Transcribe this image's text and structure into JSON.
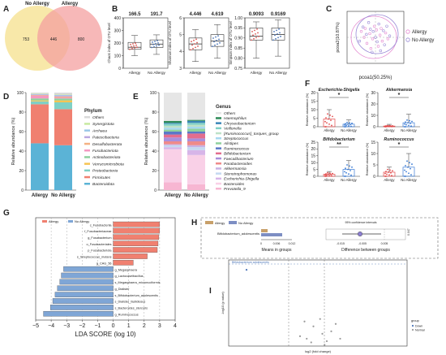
{
  "figure": {
    "panel_letters": [
      "A",
      "B",
      "C",
      "D",
      "E",
      "F",
      "G",
      "H",
      "I"
    ]
  },
  "colors": {
    "allergy": "#c8a06a",
    "no_allergy": "#7d8ec3",
    "venn_allergy": "#f4a0a0",
    "venn_no_allergy": "#f7e6a0",
    "venn_overlap": "#e89070",
    "lefse_allergy": "#f08070",
    "lefse_no_allergy": "#7fa6d6",
    "pcoa_allergy": "#e58bd2",
    "pcoa_no_allergy": "#9a8ad6"
  },
  "chart_data": [
    {
      "panel": "A",
      "type": "venn",
      "sets": [
        {
          "name": "No Allergy",
          "unique": 753
        },
        {
          "name": "Allergy",
          "unique": 800
        }
      ],
      "overlap": 446
    },
    {
      "panel": "B",
      "type": "box",
      "subplots": [
        {
          "ylabel": "Chao1 index of OTU level",
          "categories": [
            "Allergy",
            "No Allergy"
          ],
          "labels": [
            "166.5",
            "191.7"
          ],
          "median": [
            166.5,
            191.7
          ],
          "q1": [
            150,
            165
          ],
          "q3": [
            205,
            225
          ],
          "whisker_low": [
            100,
            110
          ],
          "whisker_high": [
            260,
            265
          ],
          "ylim": [
            0,
            400
          ],
          "yticks": [
            0,
            100,
            200,
            300,
            400
          ]
        },
        {
          "ylabel": "Shannon index of OTU level",
          "categories": [
            "Allergy",
            "No Allergy"
          ],
          "labels": [
            "4.446",
            "4.619"
          ],
          "median": [
            4.446,
            4.619
          ],
          "q1": [
            4.1,
            4.3
          ],
          "q3": [
            4.8,
            5.0
          ],
          "whisker_low": [
            3.4,
            3.6
          ],
          "whisker_high": [
            5.3,
            5.6
          ],
          "ylim": [
            3,
            6
          ],
          "yticks": [
            3,
            4,
            5,
            6
          ]
        },
        {
          "ylabel": "Simpson index of OTU level",
          "categories": [
            "Allergy",
            "No Allergy"
          ],
          "labels": [
            "0.9093",
            "0.9169"
          ],
          "median": [
            0.9093,
            0.9169
          ],
          "q1": [
            0.89,
            0.89
          ],
          "q3": [
            0.95,
            0.95
          ],
          "whisker_low": [
            0.8,
            0.81
          ],
          "whisker_high": [
            0.98,
            0.99
          ],
          "ylim": [
            0.75,
            1.0
          ],
          "yticks": [
            0.75,
            0.8,
            0.85,
            0.9,
            0.95,
            1.0
          ]
        }
      ]
    },
    {
      "panel": "C",
      "type": "scatter",
      "xlabel": "pcoa1(50.25%)",
      "ylabel": "pcoa2(10.87%)",
      "xlim": [
        -0.5,
        0.5
      ],
      "ylim": [
        -0.35,
        0.35
      ],
      "series": [
        {
          "name": "Allergy",
          "points": [
            [
              -0.25,
              0.08
            ],
            [
              -0.18,
              0.12
            ],
            [
              -0.1,
              0.05
            ],
            [
              -0.05,
              -0.02
            ],
            [
              0.02,
              0.1
            ],
            [
              0.08,
              0.03
            ],
            [
              0.12,
              -0.05
            ],
            [
              -0.15,
              -0.08
            ],
            [
              0.05,
              -0.12
            ],
            [
              0.18,
              0.06
            ],
            [
              -0.02,
              0.15
            ],
            [
              0.1,
              0.12
            ],
            [
              -0.08,
              -0.15
            ],
            [
              0.22,
              -0.02
            ],
            [
              -0.2,
              0.0
            ]
          ]
        },
        {
          "name": "No Allergy",
          "points": [
            [
              -0.22,
              0.14
            ],
            [
              -0.12,
              0.2
            ],
            [
              -0.04,
              0.08
            ],
            [
              0.0,
              0.0
            ],
            [
              0.06,
              0.18
            ],
            [
              0.14,
              0.09
            ],
            [
              -0.16,
              0.04
            ],
            [
              0.03,
              -0.06
            ],
            [
              -0.09,
              0.11
            ],
            [
              0.16,
              -0.1
            ],
            [
              0.2,
              0.15
            ],
            [
              -0.06,
              -0.2
            ],
            [
              0.25,
              0.02
            ],
            [
              -0.28,
              -0.05
            ],
            [
              0.09,
              -0.18
            ]
          ]
        }
      ]
    },
    {
      "panel": "D",
      "type": "bar",
      "stacked": true,
      "ylabel": "Relative abundance (%)",
      "ylim": [
        0,
        100
      ],
      "yticks": [
        0,
        20,
        40,
        60,
        80,
        100
      ],
      "categories": [
        "Allergy",
        "No Allergy"
      ],
      "legend_title": "Phylum",
      "series": [
        {
          "name": "Bacteroidota",
          "color": "#5bb3d6",
          "values": [
            48,
            46
          ]
        },
        {
          "name": "Firmicutes",
          "color": "#f08070",
          "values": [
            40,
            37
          ]
        },
        {
          "name": "Proteobacteria",
          "color": "#7fd0c5",
          "values": [
            3,
            7
          ]
        },
        {
          "name": "Verrucomicrobiota",
          "color": "#f6c453",
          "values": [
            1,
            2
          ]
        },
        {
          "name": "Actinobacteriota",
          "color": "#8fd19e",
          "values": [
            2,
            2
          ]
        },
        {
          "name": "Fusobacteriota",
          "color": "#f49ac1",
          "values": [
            3,
            1
          ]
        },
        {
          "name": "Desulfobacterota",
          "color": "#f4b183",
          "values": [
            0.5,
            1
          ]
        },
        {
          "name": "Patescibacteria",
          "color": "#bca8e0",
          "values": [
            0.5,
            1
          ]
        },
        {
          "name": "Archaea",
          "color": "#9ac7e8",
          "values": [
            0.5,
            0.5
          ]
        },
        {
          "name": "Synergistota",
          "color": "#c7e9a0",
          "values": [
            0.5,
            0.5
          ]
        },
        {
          "name": "Others",
          "color": "#d9d9d9",
          "values": [
            1,
            2
          ]
        }
      ]
    },
    {
      "panel": "E",
      "type": "bar",
      "stacked": true,
      "ylabel": "Relative abundance (%)",
      "ylim": [
        0,
        100
      ],
      "yticks": [
        0,
        20,
        40,
        60,
        80,
        100
      ],
      "categories": [
        "Allergy",
        "No Allergy"
      ],
      "legend_title": "Genus",
      "series": [
        {
          "name": "Prevotella_9",
          "color": "#f7b6d2",
          "values": [
            8,
            6
          ]
        },
        {
          "name": "Bacteroides",
          "color": "#f9d0e7",
          "values": [
            34,
            30
          ]
        },
        {
          "name": "Escherichia-Shigella",
          "color": "#d7b5e8",
          "values": [
            2,
            5
          ]
        },
        {
          "name": "Stenotrophomonas",
          "color": "#c5d9f1",
          "values": [
            2,
            3
          ]
        },
        {
          "name": "Akkermansia",
          "color": "#c9b1e3",
          "values": [
            1,
            2
          ]
        },
        {
          "name": "Parabacteroides",
          "color": "#ef8a8a",
          "values": [
            3,
            4
          ]
        },
        {
          "name": "Faecalibacterium",
          "color": "#a98fdc",
          "values": [
            4,
            3
          ]
        },
        {
          "name": "Bifidobacterium",
          "color": "#e36d8e",
          "values": [
            3,
            5
          ]
        },
        {
          "name": "Ruminococcus",
          "color": "#5a78c8",
          "values": [
            3,
            2
          ]
        },
        {
          "name": "Alistipes",
          "color": "#8fd19e",
          "values": [
            2,
            3
          ]
        },
        {
          "name": "Streptococcus",
          "color": "#a7d8f0",
          "values": [
            2,
            2
          ]
        },
        {
          "name": "[Ruminococcus]_torques_group",
          "color": "#bde2c8",
          "values": [
            2,
            2
          ]
        },
        {
          "name": "Veillonella",
          "color": "#7fd0c5",
          "values": [
            2,
            2
          ]
        },
        {
          "name": "Chryseobacterium",
          "color": "#3a86b8",
          "values": [
            1,
            2
          ]
        },
        {
          "name": "Haemophilus",
          "color": "#2e8b57",
          "values": [
            2,
            1
          ]
        },
        {
          "name": "Others",
          "color": "#e6e6e6",
          "values": [
            29,
            28
          ]
        }
      ]
    },
    {
      "panel": "F",
      "type": "bar_scatter",
      "ylabel": "Relative abundance (%)",
      "categories": [
        "Allergy",
        "No Allergy"
      ],
      "subplots": [
        {
          "title": "Escherichia-Shigella",
          "means": [
            4.5,
            1.5
          ],
          "sd": [
            5.5,
            2.5
          ],
          "ylim": [
            0,
            20
          ],
          "yticks": [
            0,
            5,
            10,
            15,
            20
          ],
          "sig": "*"
        },
        {
          "title": "Akkermansia",
          "means": [
            0.6,
            3.5
          ],
          "sd": [
            1.5,
            7.5
          ],
          "ylim": [
            0,
            30
          ],
          "yticks": [
            0,
            10,
            20,
            30
          ],
          "sig": "*"
        },
        {
          "title": "Bifidobacterium",
          "means": [
            1.5,
            5.0
          ],
          "sd": [
            2.0,
            6.5
          ],
          "ylim": [
            0,
            25
          ],
          "yticks": [
            0,
            5,
            10,
            15,
            20,
            25
          ],
          "sig": "**"
        },
        {
          "title": "Ruminococcus",
          "means": [
            1.8,
            4.0
          ],
          "sd": [
            2.2,
            6.0
          ],
          "ylim": [
            0,
            15
          ],
          "yticks": [
            0,
            5,
            10,
            15
          ],
          "sig": "*"
        }
      ]
    },
    {
      "panel": "G",
      "type": "bar",
      "orientation": "horizontal",
      "xlabel": "LDA SCORE (log 10)",
      "xlim": [
        -5,
        4
      ],
      "xticks": [
        -5,
        -4,
        -3,
        -2,
        -1,
        0,
        1,
        2,
        3,
        4
      ],
      "legend": [
        "Allergy",
        "No Allergy"
      ],
      "categories": [
        "c_Fusobacteriia",
        "f_Fusobacteriaceae",
        "g_Fusobacterium",
        "o_Fusobacteriales",
        "p_Fusobacteriota",
        "s_Streptococcus_mutans",
        "g_CAG_56",
        "g_Megasphaera",
        "g_Lactocaseibacillus",
        "s_Megasphaera_micronuciformis",
        "g_Dialister",
        "s_Bifidobacterium_adolescentis",
        "s_Dialister_fastidiosus",
        "s_Bacteroides_stercoris",
        "g_Ruminococcus"
      ],
      "values": [
        3.0,
        3.0,
        2.95,
        2.9,
        2.85,
        2.2,
        1.3,
        -3.2,
        -3.35,
        -3.45,
        -3.6,
        -3.75,
        -3.9,
        -4.05,
        -4.5
      ]
    },
    {
      "panel": "H",
      "type": "extended_error_bar",
      "legend": [
        "Allergy",
        "No Allergy"
      ],
      "ci_label": "95% confidence intervals",
      "categories": [
        "Bifidobacterium_adolescentis"
      ],
      "mean_allergy": [
        0.003
      ],
      "mean_no_allergy": [
        0.009
      ],
      "difference": [
        -0.006
      ],
      "ci": [
        [
          -0.014,
          0.001
        ]
      ],
      "p_value": "0.047",
      "xlabel_left": "Means in groups",
      "xlabel_right": "Difference between groups",
      "left_ticks": [
        "0",
        "0.006",
        "0.012"
      ],
      "right_ticks": [
        "-0.015",
        "-0.005",
        "0.005"
      ]
    },
    {
      "panel": "I",
      "type": "scatter",
      "xlabel": "log2 (fold change)",
      "ylabel": "-log10 (p value)",
      "annotation": "Bifidobacterium adolescentis",
      "legend_title": "group",
      "legend_items": [
        "Down",
        "Normal"
      ],
      "series": [
        {
          "name": "Down",
          "points": [
            [
              -3.2,
              3.1
            ]
          ]
        },
        {
          "name": "Normal",
          "points": [
            [
              -0.5,
              0.3
            ],
            [
              0.2,
              0.5
            ],
            [
              0.4,
              0.2
            ],
            [
              -0.2,
              0.8
            ],
            [
              0.6,
              0.6
            ],
            [
              -0.8,
              0.4
            ],
            [
              1.0,
              0.3
            ],
            [
              0.1,
              1.1
            ],
            [
              -0.3,
              0.15
            ],
            [
              0.8,
              0.9
            ],
            [
              -0.6,
              1.0
            ],
            [
              0.3,
              0.05
            ]
          ]
        }
      ]
    }
  ]
}
